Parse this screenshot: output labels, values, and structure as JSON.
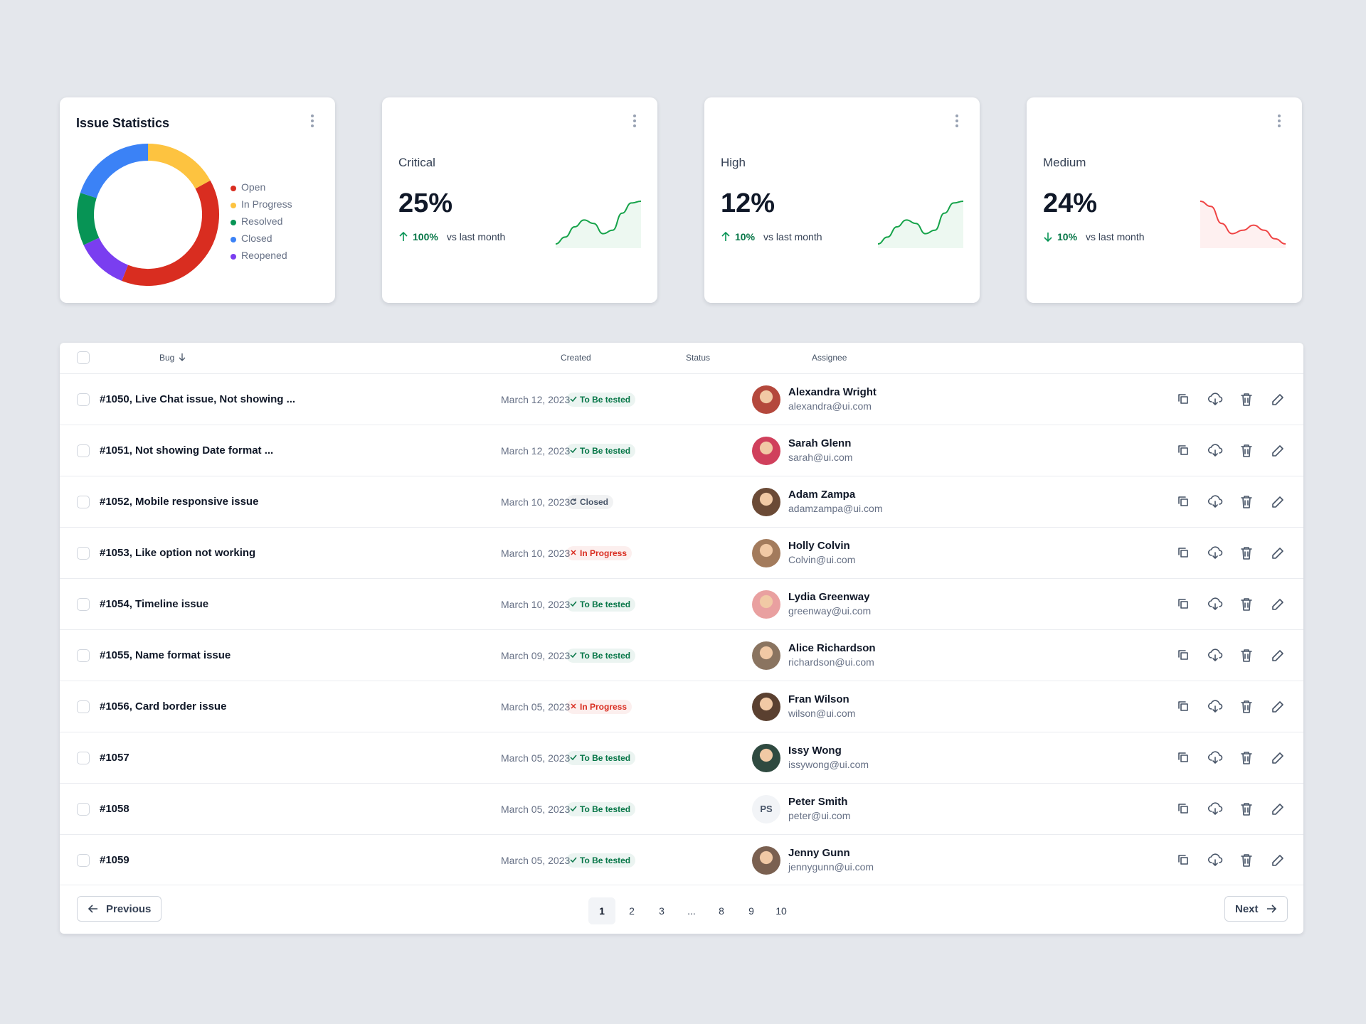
{
  "chart_data": {
    "type": "donut",
    "title": "Issue Statistics",
    "categories": [
      "Open",
      "In Progress",
      "Resolved",
      "Closed",
      "Reopened"
    ],
    "values": [
      39,
      17,
      12,
      20,
      12
    ],
    "colors": [
      "#d92d20",
      "#fdc340",
      "#079455",
      "#3b82f6",
      "#7a3ef0"
    ]
  },
  "cards": [
    {
      "label": "Critical",
      "value": "25%",
      "change": "100%",
      "note": "vs last month",
      "direction": "up",
      "color": "#16a34a",
      "trend": [
        0,
        2,
        5,
        7,
        6,
        3,
        4,
        9,
        12,
        12.5
      ]
    },
    {
      "label": "High",
      "value": "12%",
      "change": "10%",
      "note": "vs last month",
      "direction": "up",
      "color": "#16a34a",
      "trend": [
        0,
        2,
        5,
        7,
        6,
        3,
        4,
        9,
        12,
        12.5
      ]
    },
    {
      "label": "Medium",
      "value": "24%",
      "change": "10%",
      "note": "vs last month",
      "direction": "down",
      "color": "#ef4444",
      "trend": [
        12.5,
        11,
        6,
        3,
        4,
        5.5,
        4,
        1.5,
        0
      ]
    }
  ],
  "table": {
    "headers": [
      "Bug",
      "Created",
      "Status",
      "Assignee"
    ],
    "rows": [
      {
        "bug": "#1050, Live Chat issue, Not showing ...",
        "created": "March 12, 2023",
        "status": "To Be tested",
        "status_color": "#067647",
        "name": "Alexandra Wright",
        "email": "alexandra@ui.com",
        "avatar": "#b4483c"
      },
      {
        "bug": "#1051, Not showing Date format ...",
        "created": "March 12, 2023",
        "status": "To Be tested",
        "status_color": "#067647",
        "name": "Sarah Glenn",
        "email": "sarah@ui.com",
        "avatar": "#d0405c"
      },
      {
        "bug": "#1052, Mobile responsive issue",
        "created": "March 10, 2023",
        "status": "Closed",
        "status_color": "#475467",
        "name": "Adam Zampa",
        "email": "adamzampa@ui.com",
        "avatar": "#6b4a36"
      },
      {
        "bug": "#1053, Like option not working",
        "created": "March 10, 2023",
        "status": "In Progress",
        "status_color": "#d92d20",
        "name": "Holly Colvin",
        "email": "Colvin@ui.com",
        "avatar": "#a37b5c"
      },
      {
        "bug": "#1054, Timeline issue",
        "created": "March 10, 2023",
        "status": "To Be tested",
        "status_color": "#067647",
        "name": "Lydia Greenway",
        "email": "greenway@ui.com",
        "avatar": "#e9a0a0"
      },
      {
        "bug": "#1055, Name format issue",
        "created": "March 09, 2023",
        "status": "To Be tested",
        "status_color": "#067647",
        "name": "Alice Richardson",
        "email": "richardson@ui.com",
        "avatar": "#8a7460"
      },
      {
        "bug": "#1056, Card border issue",
        "created": "March 05, 2023",
        "status": "In Progress",
        "status_color": "#d92d20",
        "name": "Fran Wilson",
        "email": "wilson@ui.com",
        "avatar": "#5a4030"
      },
      {
        "bug": "#1057",
        "created": "March 05, 2023",
        "status": "To Be tested",
        "status_color": "#067647",
        "name": "Issy Wong",
        "email": "issywong@ui.com",
        "avatar": "#2f4a40"
      },
      {
        "bug": "#1058",
        "created": "March 05, 2023",
        "status": "To Be tested",
        "status_color": "#067647",
        "name": "Peter Smith",
        "email": "peter@ui.com",
        "initials": "PS"
      },
      {
        "bug": "#1059",
        "created": "March 05, 2023",
        "status": "To Be tested",
        "status_color": "#067647",
        "name": "Jenny Gunn",
        "email": "jennygunn@ui.com",
        "avatar": "#7a6050"
      }
    ]
  },
  "pagination": {
    "previous": "Previous",
    "pages": [
      "1",
      "2",
      "3",
      "...",
      "8",
      "9",
      "10"
    ],
    "next": "Next"
  }
}
